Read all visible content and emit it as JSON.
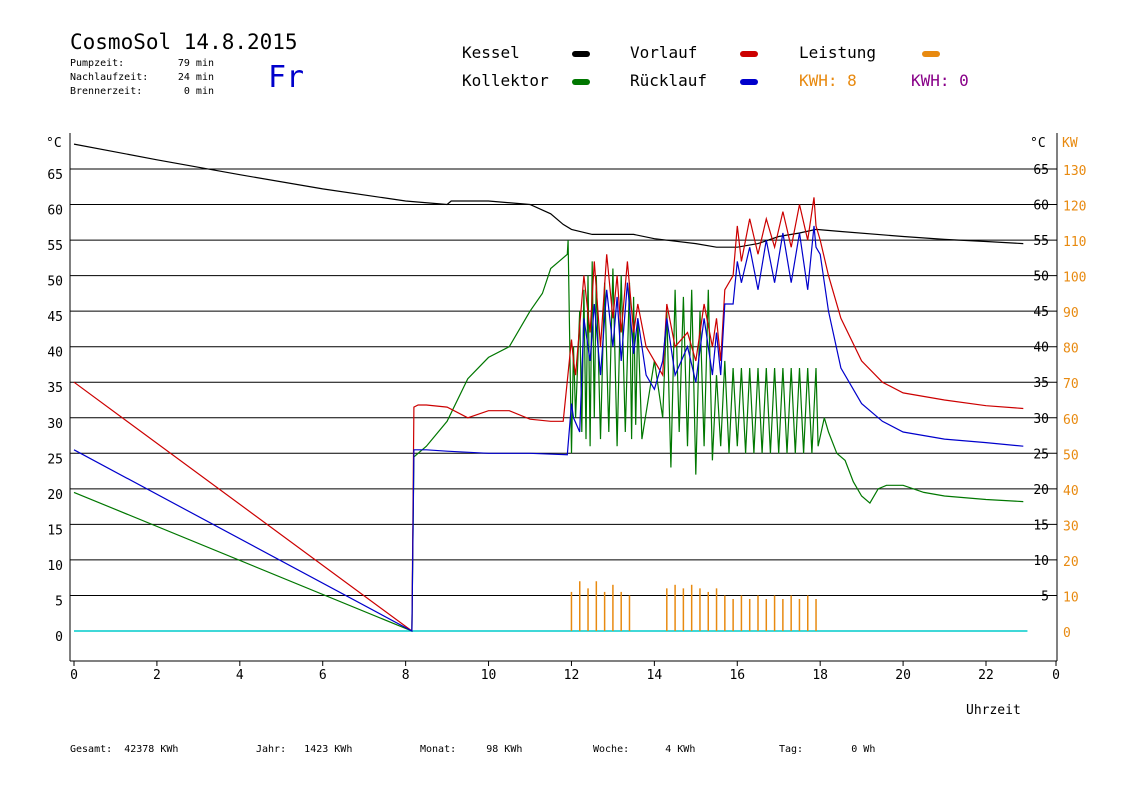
{
  "header": {
    "title": "CosmoSol 14.8.2015",
    "weekday": "Fr",
    "info": [
      {
        "label": "Pumpzeit:",
        "value": "79 min"
      },
      {
        "label": "Nachlaufzeit:",
        "value": "24 min"
      },
      {
        "label": "Brennerzeit:",
        "value": "0 min"
      }
    ]
  },
  "legend": {
    "kessel": "Kessel",
    "kollektor": "Kollektor",
    "vorlauf": "Vorlauf",
    "ruecklauf": "Rücklauf",
    "leistung": "Leistung",
    "kwh1": "KWH: 8",
    "kwh2": "KWH: 0"
  },
  "footer": [
    {
      "label": "Gesamt:",
      "value": "42378 KWh"
    },
    {
      "label": "Jahr:",
      "value": "1423 KWh"
    },
    {
      "label": "Monat:",
      "value": "98 KWh"
    },
    {
      "label": "Woche:",
      "value": "4 KWh"
    },
    {
      "label": "Tag:",
      "value": "0 Wh"
    }
  ],
  "colors": {
    "kessel": "#000000",
    "kollektor": "#007700",
    "vorlauf": "#cc0000",
    "ruecklauf": "#0000cc",
    "leistung": "#e88a10",
    "kwh2": "#880088",
    "baseline": "#00cccc"
  },
  "chart_data": {
    "type": "line",
    "xlabel": "Uhrzeit",
    "ylabel_left": "°C",
    "ylabel_right_temp": "°C",
    "ylabel_right_power": "KW",
    "xlim": [
      0,
      24
    ],
    "ylim": [
      -4,
      70
    ],
    "grid": true,
    "x_ticks": [
      "0",
      "2",
      "4",
      "6",
      "8",
      "10",
      "12",
      "14",
      "16",
      "18",
      "20",
      "22",
      "0"
    ],
    "y_ticks_left": [
      "0",
      "5",
      "10",
      "15",
      "20",
      "25",
      "30",
      "35",
      "40",
      "45",
      "50",
      "55",
      "60",
      "65"
    ],
    "y_ticks_right_temp": [
      "5",
      "10",
      "15",
      "20",
      "25",
      "30",
      "35",
      "40",
      "45",
      "50",
      "55",
      "60",
      "65"
    ],
    "y_ticks_right_power": [
      "0",
      "10",
      "20",
      "30",
      "40",
      "50",
      "60",
      "70",
      "80",
      "90",
      "100",
      "110",
      "120",
      "130"
    ],
    "series": [
      {
        "name": "Kessel",
        "x": [
          0,
          2,
          4,
          6,
          8,
          9,
          9.1,
          10,
          11,
          11.5,
          11.8,
          12,
          12.5,
          13.5,
          14,
          15,
          15.5,
          16,
          16.5,
          17,
          17.5,
          17.9,
          18.5,
          20,
          21,
          22,
          22.9
        ],
        "y": [
          68.5,
          66.3,
          64.2,
          62.2,
          60.5,
          60,
          60.5,
          60.5,
          60,
          58.7,
          57.2,
          56.5,
          55.8,
          55.8,
          55.2,
          54.5,
          54,
          54,
          54.5,
          55.5,
          56,
          56.5,
          56.2,
          55.5,
          55.1,
          54.8,
          54.5
        ]
      },
      {
        "name": "Kollektor",
        "x": [
          0,
          8.15,
          8.2,
          8.5,
          9,
          9.5,
          10,
          10.5,
          11,
          11.3,
          11.5,
          11.7,
          11.9,
          11.92,
          12,
          12.05,
          12.1,
          12.2,
          12.25,
          12.3,
          12.35,
          12.4,
          12.45,
          12.5,
          12.55,
          12.6,
          12.7,
          12.8,
          12.9,
          13,
          13.1,
          13.2,
          13.3,
          13.4,
          13.45,
          13.5,
          13.55,
          13.6,
          13.7,
          14,
          14.2,
          14.3,
          14.4,
          14.5,
          14.6,
          14.7,
          14.8,
          14.9,
          15,
          15.1,
          15.2,
          15.3,
          15.4,
          15.5,
          15.6,
          15.7,
          15.8,
          15.9,
          16,
          16.1,
          16.2,
          16.3,
          16.4,
          16.5,
          16.6,
          16.7,
          16.8,
          16.9,
          17,
          17.1,
          17.2,
          17.3,
          17.4,
          17.5,
          17.6,
          17.7,
          17.8,
          17.9,
          17.95,
          18.1,
          18.2,
          18.4,
          18.6,
          18.8,
          19,
          19.2,
          19.4,
          19.6,
          20,
          20.5,
          21,
          22,
          22.9
        ],
        "y": [
          19.5,
          0,
          24.5,
          26,
          29.5,
          35.5,
          38.5,
          40,
          45,
          47.5,
          51,
          52,
          53,
          55,
          25,
          40,
          30,
          45,
          28,
          48,
          27,
          50,
          26,
          52,
          30,
          50,
          27,
          49,
          28,
          51,
          26,
          50,
          28,
          49,
          27,
          47,
          29,
          44,
          27,
          38,
          30,
          45,
          23,
          48,
          28,
          47,
          26,
          48,
          22,
          45,
          26,
          48,
          24,
          36,
          26,
          38,
          25,
          37,
          26,
          37,
          25,
          37,
          25,
          37,
          25,
          37,
          25,
          37,
          25,
          37,
          25,
          37,
          25,
          37,
          25,
          37,
          25,
          37,
          26,
          30,
          28,
          25,
          24,
          21,
          19,
          18,
          20,
          20.5,
          20.5,
          19.5,
          19,
          18.5,
          18.2
        ]
      },
      {
        "name": "Vorlauf",
        "x": [
          0,
          8.15,
          8.2,
          8.3,
          8.5,
          9,
          9.5,
          10,
          10.5,
          11,
          11.5,
          11.8,
          12,
          12.05,
          12.1,
          12.3,
          12.45,
          12.55,
          12.7,
          12.85,
          13,
          13.1,
          13.2,
          13.35,
          13.5,
          13.6,
          13.8,
          14,
          14.2,
          14.3,
          14.5,
          14.8,
          15,
          15.2,
          15.4,
          15.5,
          15.6,
          15.7,
          15.9,
          16,
          16.1,
          16.3,
          16.5,
          16.7,
          16.9,
          17.1,
          17.3,
          17.5,
          17.7,
          17.85,
          17.9,
          18,
          18.2,
          18.5,
          19,
          19.5,
          20,
          21,
          22,
          22.9
        ],
        "y": [
          35,
          0,
          31.5,
          31.8,
          31.8,
          31.5,
          30,
          31,
          31,
          29.8,
          29.5,
          29.5,
          41,
          38,
          36,
          50,
          42,
          52,
          40,
          53,
          44,
          50,
          42,
          52,
          42,
          46,
          40,
          38,
          36,
          46,
          40,
          42,
          38,
          46,
          40,
          44,
          38,
          48,
          50,
          57,
          52,
          58,
          53,
          58,
          54,
          59,
          54,
          60,
          55,
          61,
          57,
          55,
          50,
          44,
          38,
          35,
          33.5,
          32.5,
          31.7,
          31.3
        ]
      },
      {
        "name": "Rücklauf",
        "x": [
          0,
          8.15,
          8.2,
          8.3,
          8.5,
          9,
          10,
          11,
          11.9,
          12,
          12.05,
          12.2,
          12.3,
          12.45,
          12.55,
          12.7,
          12.85,
          13,
          13.1,
          13.2,
          13.35,
          13.5,
          13.6,
          13.8,
          14,
          14.2,
          14.3,
          14.5,
          14.8,
          15,
          15.2,
          15.4,
          15.5,
          15.6,
          15.7,
          15.9,
          16,
          16.1,
          16.3,
          16.5,
          16.7,
          16.9,
          17.1,
          17.3,
          17.5,
          17.7,
          17.85,
          17.9,
          18,
          18.2,
          18.5,
          19,
          19.5,
          20,
          21,
          22,
          22.9
        ],
        "y": [
          25.5,
          0,
          25.5,
          25.5,
          25.5,
          25.3,
          25,
          25,
          24.8,
          32,
          30,
          28,
          44,
          38,
          46,
          36,
          48,
          40,
          47,
          38,
          49,
          39,
          44,
          36,
          34,
          38,
          44,
          36,
          40,
          35,
          44,
          36,
          42,
          36,
          46,
          46,
          52,
          49,
          54,
          48,
          55,
          49,
          56,
          49,
          56,
          48,
          57,
          54,
          53,
          45,
          37,
          32,
          29.5,
          28,
          27,
          26.5,
          26
        ]
      }
    ],
    "power_series": {
      "name": "Leistung",
      "x": [
        12,
        12.2,
        12.4,
        12.6,
        12.8,
        13,
        13.2,
        13.4,
        14.3,
        14.5,
        14.7,
        14.9,
        15.1,
        15.3,
        15.5,
        15.7,
        15.9,
        16.1,
        16.3,
        16.5,
        16.7,
        16.9,
        17.1,
        17.3,
        17.5,
        17.7,
        17.9
      ],
      "y": [
        5.5,
        7,
        6,
        7,
        5.5,
        6.5,
        5.5,
        5,
        6,
        6.5,
        6,
        6.5,
        6,
        5.5,
        6,
        5,
        4.5,
        5,
        4.5,
        5,
        4.5,
        5,
        4.5,
        5,
        4.5,
        5,
        4.5
      ]
    }
  }
}
